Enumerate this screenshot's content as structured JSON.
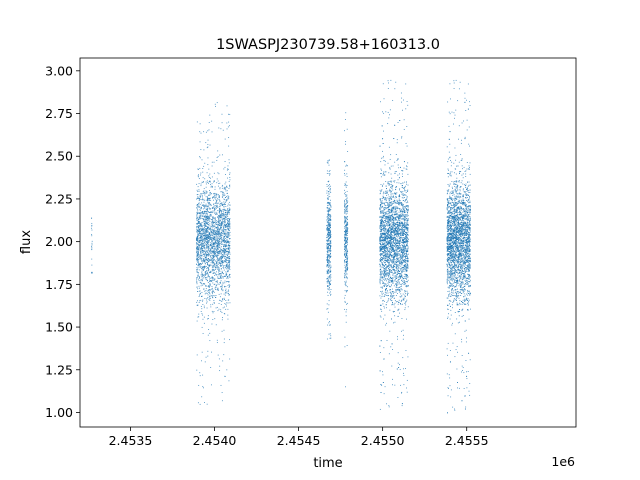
{
  "chart_data": {
    "type": "scatter",
    "title": "1SWASPJ230739.58+160313.0",
    "xlabel": "time",
    "ylabel": "flux",
    "x_offset_label": "1e6",
    "xlim": [
      2453200,
      2456150
    ],
    "ylim": [
      0.915,
      3.075
    ],
    "xticks": [
      2453500,
      2454000,
      2454500,
      2455000,
      2455500
    ],
    "xtick_labels": [
      "2.4535",
      "2.4540",
      "2.4545",
      "2.4550",
      "2.4555"
    ],
    "yticks": [
      1.0,
      1.25,
      1.5,
      1.75,
      2.0,
      2.25,
      2.5,
      2.75,
      3.0
    ],
    "ytick_labels": [
      "1.00",
      "1.25",
      "1.50",
      "1.75",
      "2.00",
      "2.25",
      "2.50",
      "2.75",
      "3.00"
    ],
    "grid": false,
    "point_color": "#1f77b4",
    "series": [
      {
        "clusters": [
          {
            "t_start": 2453265,
            "t_end": 2453270,
            "flux_min": 1.82,
            "flux_max": 2.14,
            "points": 25
          },
          {
            "t_start": 2453890,
            "t_end": 2454090,
            "flux_min": 1.03,
            "flux_max": 2.82,
            "points": 2600
          },
          {
            "t_start": 2454665,
            "t_end": 2454690,
            "flux_min": 1.38,
            "flux_max": 2.48,
            "points": 450
          },
          {
            "t_start": 2454770,
            "t_end": 2454790,
            "flux_min": 1.14,
            "flux_max": 2.76,
            "points": 350
          },
          {
            "t_start": 2454980,
            "t_end": 2455150,
            "flux_min": 1.02,
            "flux_max": 2.95,
            "points": 3000
          },
          {
            "t_start": 2455380,
            "t_end": 2455520,
            "flux_min": 1.0,
            "flux_max": 2.95,
            "points": 2800
          }
        ]
      }
    ]
  }
}
